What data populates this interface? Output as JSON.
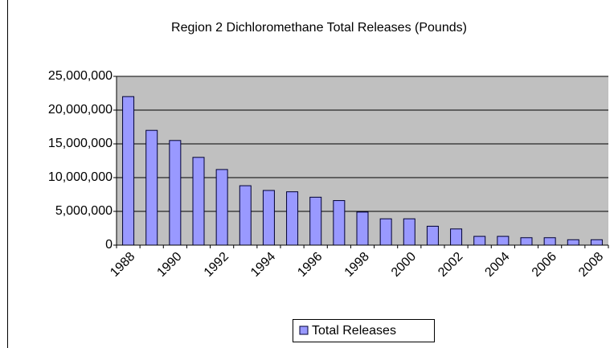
{
  "chart_data": {
    "type": "bar",
    "title": "Region 2 Dichloromethane Total Releases (Pounds)",
    "categories": [
      "1988",
      null,
      "1990",
      null,
      "1992",
      null,
      "1994",
      null,
      "1996",
      null,
      "1998",
      null,
      "2000",
      null,
      "2002",
      null,
      "2004",
      null,
      "2006",
      null,
      "2008"
    ],
    "series": [
      {
        "name": "Total Releases",
        "color": "#9999ff",
        "values": [
          22000000,
          17000000,
          15500000,
          13000000,
          11200000,
          8800000,
          8100000,
          7900000,
          7100000,
          6600000,
          4900000,
          3900000,
          3900000,
          2800000,
          2400000,
          1300000,
          1300000,
          1100000,
          1100000,
          800000,
          800000
        ]
      }
    ],
    "ylim": [
      0,
      25000000
    ],
    "yticks": [
      0,
      {
        "value": 5000000,
        "label": "5,000,000"
      },
      {
        "value": 10000000,
        "label": "10,000,000"
      },
      {
        "value": 15000000,
        "label": "15,000,000"
      },
      {
        "value": 20000000,
        "label": "20,000,000"
      },
      {
        "value": 25000000,
        "label": "25,000,000"
      }
    ],
    "grid": true,
    "legend": "bottom"
  }
}
